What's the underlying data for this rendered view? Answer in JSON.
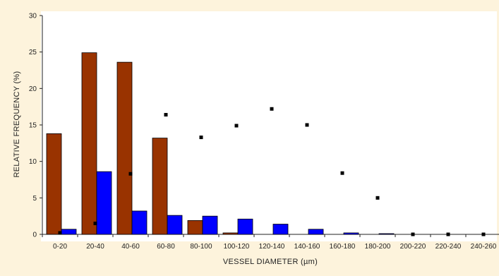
{
  "chart_data": {
    "type": "bar",
    "title": "",
    "xlabel": "VESSEL DIAMETER (µm)",
    "ylabel": "RELATIVE FREQUENCY (%)",
    "ylim": [
      0,
      30
    ],
    "yticks": [
      0,
      5,
      10,
      15,
      20,
      25,
      30
    ],
    "grid": false,
    "categories": [
      "0-20",
      "20-40",
      "40-60",
      "60-80",
      "80-100",
      "100-120",
      "120-140",
      "140-160",
      "160-180",
      "180-200",
      "200-220",
      "220-240",
      "240-260"
    ],
    "series": [
      {
        "type": "bar",
        "color": "#993300",
        "values": [
          13.8,
          24.9,
          23.6,
          13.2,
          1.9,
          0.2,
          0,
          0,
          0,
          0,
          0,
          0,
          0
        ]
      },
      {
        "type": "bar",
        "color": "#0000ff",
        "values": [
          0.7,
          8.6,
          3.2,
          2.6,
          2.5,
          2.1,
          1.4,
          0.7,
          0.2,
          0.1,
          0,
          0,
          0
        ]
      },
      {
        "type": "scatter",
        "marker": "square",
        "color": "#000000",
        "values": [
          0.2,
          1.5,
          8.3,
          16.4,
          13.3,
          14.9,
          17.2,
          15.0,
          8.4,
          5.0,
          0,
          0,
          0
        ]
      }
    ]
  }
}
